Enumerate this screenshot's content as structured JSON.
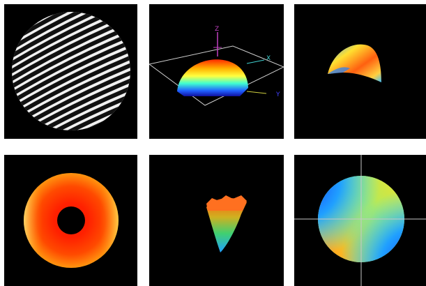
{
  "panels": [
    {
      "id": "interferogram",
      "icon": "fringe-pattern-image"
    },
    {
      "id": "surface-3d",
      "icon": "surface-plot-image",
      "axes": {
        "z": "Z",
        "x": "X",
        "y": "Y"
      }
    },
    {
      "id": "curled-patch",
      "icon": "curved-surface-image"
    },
    {
      "id": "annulus-map",
      "icon": "ring-phase-map-image"
    },
    {
      "id": "cone-3d",
      "icon": "cone-surface-image"
    },
    {
      "id": "astigmatism-map",
      "icon": "contour-phase-map-image"
    }
  ]
}
